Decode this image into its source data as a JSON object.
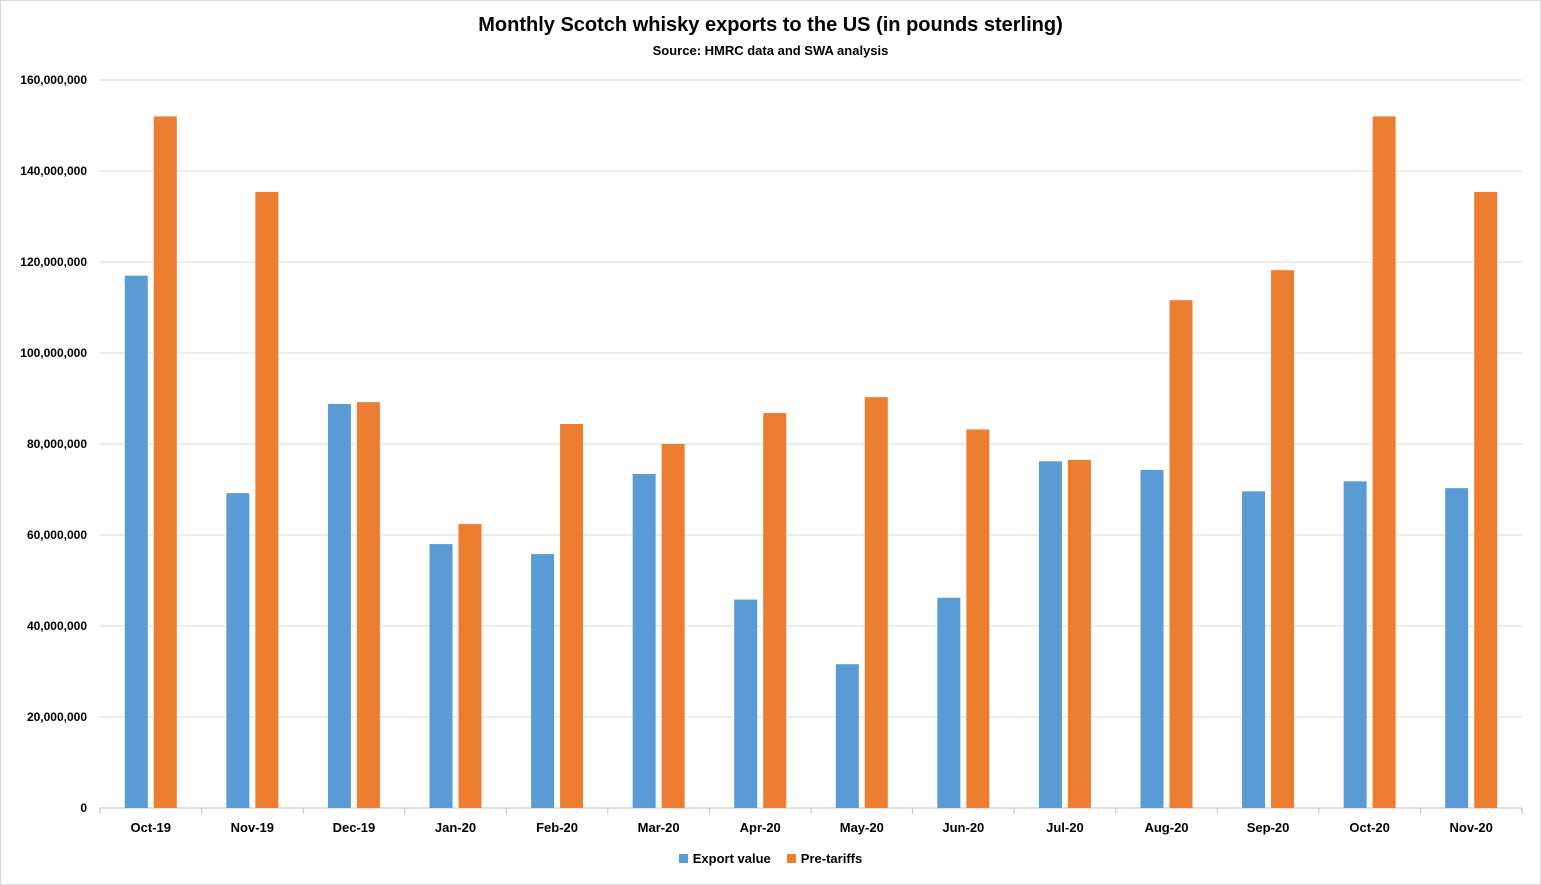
{
  "chart_data": {
    "type": "bar",
    "title": "Monthly Scotch whisky exports to the US (in pounds sterling)",
    "subtitle": "Source: HMRC data and SWA analysis",
    "xlabel": "",
    "ylabel": "",
    "ylim": [
      0,
      160000000
    ],
    "yticks": [
      0,
      20000000,
      40000000,
      60000000,
      80000000,
      100000000,
      120000000,
      140000000,
      160000000
    ],
    "ytick_labels": [
      "0",
      "20,000,000",
      "40,000,000",
      "60,000,000",
      "80,000,000",
      "100,000,000",
      "120,000,000",
      "140,000,000",
      "160,000,000"
    ],
    "grid": true,
    "legend_position": "bottom",
    "categories": [
      "Oct-19",
      "Nov-19",
      "Dec-19",
      "Jan-20",
      "Feb-20",
      "Mar-20",
      "Apr-20",
      "May-20",
      "Jun-20",
      "Jul-20",
      "Aug-20",
      "Sep-20",
      "Oct-20",
      "Nov-20"
    ],
    "series": [
      {
        "name": "Export value",
        "color": "#5b9bd5",
        "values": [
          117000000,
          69200000,
          88800000,
          58000000,
          55800000,
          73400000,
          45800000,
          31600000,
          46200000,
          76200000,
          74300000,
          69600000,
          71800000,
          70300000
        ]
      },
      {
        "name": "Pre-tariffs",
        "color": "#ed7d31",
        "values": [
          152000000,
          135400000,
          89200000,
          62400000,
          84400000,
          80000000,
          86800000,
          90300000,
          83200000,
          76500000,
          111600000,
          118200000,
          152000000,
          135400000
        ]
      }
    ]
  }
}
